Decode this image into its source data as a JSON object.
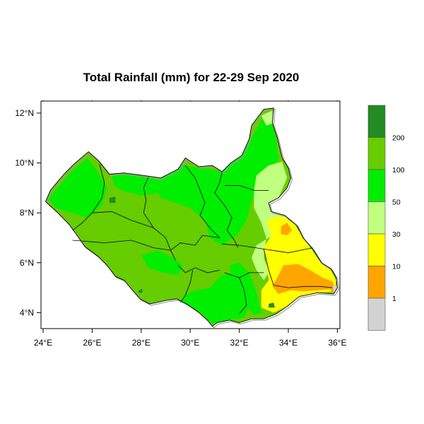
{
  "title": "Total Rainfall (mm) for 22-29 Sep 2020",
  "axes": {
    "x_ticks": [
      "24°E",
      "26°E",
      "28°E",
      "30°E",
      "32°E",
      "34°E",
      "36°E"
    ],
    "y_ticks": [
      "12°N",
      "10°N",
      "8°N",
      "6°N",
      "4°N"
    ],
    "x_range": [
      23.9,
      36.1
    ],
    "y_range": [
      3.2,
      12.5
    ]
  },
  "legend": {
    "labels": [
      "200",
      "100",
      "50",
      "30",
      "10",
      "1"
    ],
    "colors": [
      "#228b22",
      "#66cd00",
      "#00ee00",
      "#c0ff80",
      "#ffff00",
      "#ffa500",
      "#d3d3d3"
    ]
  },
  "colors": {
    "dominant_fill": "#66cd00",
    "boundary": "#000000"
  }
}
